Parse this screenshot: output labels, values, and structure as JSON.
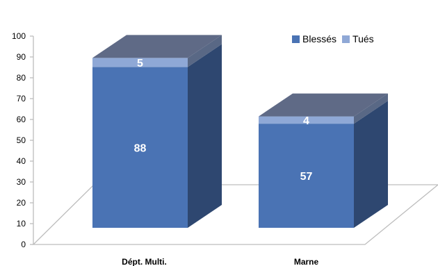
{
  "chart_data": {
    "type": "bar",
    "stacked": true,
    "three_d": true,
    "categories": [
      "Dépt. Multi.",
      "Marne"
    ],
    "series": [
      {
        "name": "Blessés",
        "values": [
          88,
          57
        ],
        "color": "#4A73B4"
      },
      {
        "name": "Tués",
        "values": [
          5,
          4
        ],
        "color": "#8FA8D6"
      }
    ],
    "ylim": [
      0,
      100
    ],
    "yticks": [
      0,
      10,
      20,
      30,
      40,
      50,
      60,
      70,
      80,
      90,
      100
    ],
    "legend_position": "top-right",
    "grid": false
  }
}
